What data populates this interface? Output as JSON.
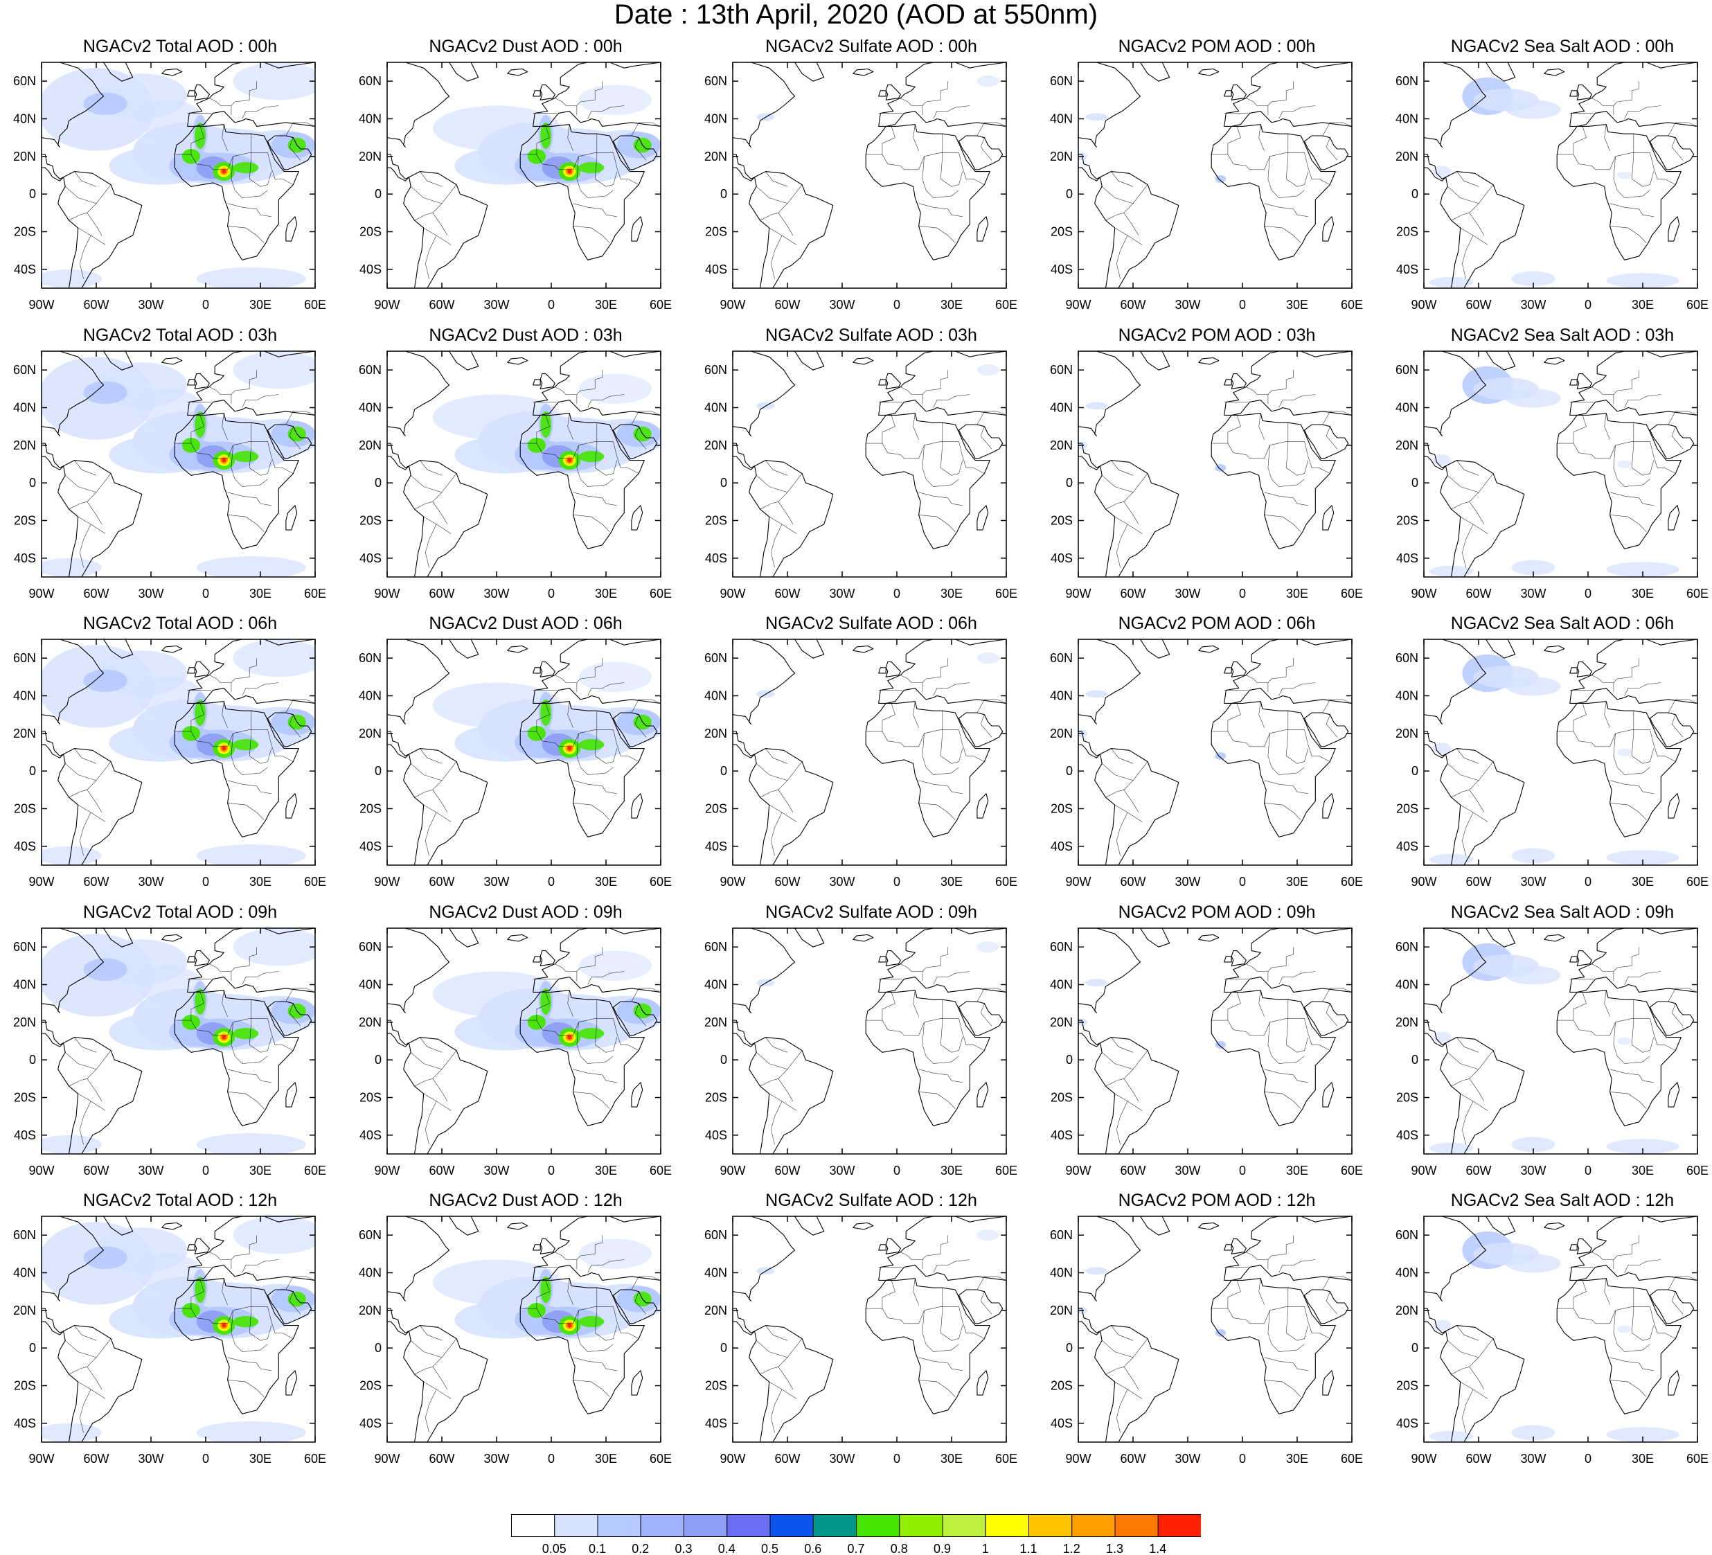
{
  "title": "Date : 13th April, 2020 (AOD at 550nm)",
  "lat_ticks": [
    "60N",
    "40N",
    "20N",
    "0",
    "20S",
    "40S"
  ],
  "lon_ticks": [
    "90W",
    "60W",
    "30W",
    "0",
    "30E",
    "60E"
  ],
  "map_extent": {
    "lon": [
      -90,
      60
    ],
    "lat": [
      -50,
      70
    ]
  },
  "panels": [
    {
      "title": "NGACv2 Total AOD : 00h",
      "field": "total"
    },
    {
      "title": "NGACv2 Dust AOD : 00h",
      "field": "dust"
    },
    {
      "title": "NGACv2 Sulfate AOD : 00h",
      "field": "sulfate"
    },
    {
      "title": "NGACv2 POM AOD : 00h",
      "field": "pom"
    },
    {
      "title": "NGACv2 Sea Salt AOD : 00h",
      "field": "seasalt"
    },
    {
      "title": "NGACv2 Total AOD : 03h",
      "field": "total"
    },
    {
      "title": "NGACv2 Dust AOD : 03h",
      "field": "dust"
    },
    {
      "title": "NGACv2 Sulfate AOD : 03h",
      "field": "sulfate"
    },
    {
      "title": "NGACv2 POM AOD : 03h",
      "field": "pom"
    },
    {
      "title": "NGACv2 Sea Salt AOD : 03h",
      "field": "seasalt"
    },
    {
      "title": "NGACv2 Total AOD : 06h",
      "field": "total"
    },
    {
      "title": "NGACv2 Dust AOD : 06h",
      "field": "dust"
    },
    {
      "title": "NGACv2 Sulfate AOD : 06h",
      "field": "sulfate"
    },
    {
      "title": "NGACv2 POM AOD : 06h",
      "field": "pom"
    },
    {
      "title": "NGACv2 Sea Salt AOD : 06h",
      "field": "seasalt"
    },
    {
      "title": "NGACv2 Total AOD : 09h",
      "field": "total"
    },
    {
      "title": "NGACv2 Dust AOD : 09h",
      "field": "dust"
    },
    {
      "title": "NGACv2 Sulfate AOD : 09h",
      "field": "sulfate"
    },
    {
      "title": "NGACv2 POM AOD : 09h",
      "field": "pom"
    },
    {
      "title": "NGACv2 Sea Salt  AOD : 09h",
      "field": "seasalt"
    },
    {
      "title": "NGACv2 Total AOD  : 12h",
      "field": "total"
    },
    {
      "title": "NGACv2 Dust AOD : 12h",
      "field": "dust"
    },
    {
      "title": "NGACv2 Sulfate AOD : 12h",
      "field": "sulfate"
    },
    {
      "title": "NGACv2 POM  AOD : 12h",
      "field": "pom"
    },
    {
      "title": "NGACv2 Sea Salt  AOD : 12h",
      "field": "seasalt"
    }
  ],
  "colorbar": {
    "labels": [
      "0.05",
      "0.1",
      "0.2",
      "0.3",
      "0.4",
      "0.5",
      "0.6",
      "0.7",
      "0.8",
      "0.9",
      "1",
      "1.1",
      "1.2",
      "1.3",
      "1.4"
    ],
    "colors": [
      "#ffffff",
      "#d6e2ff",
      "#b5c8ff",
      "#9fb1ff",
      "#8f9ff5",
      "#6a6ef2",
      "#0e55ef",
      "#00968c",
      "#45e500",
      "#93ef00",
      "#bff040",
      "#ffff00",
      "#ffc600",
      "#ffa000",
      "#ff7800",
      "#ff2200"
    ]
  },
  "color_key": {
    "land_outline": "#000000",
    "aod_light": "#d6e2ff",
    "aod_medium": "#b5c8ff",
    "aod_blue": "#8f9ff5",
    "aod_green": "#45e500",
    "aod_yellow": "#ffff00",
    "aod_orange": "#ffa000",
    "aod_red": "#ff2200"
  }
}
